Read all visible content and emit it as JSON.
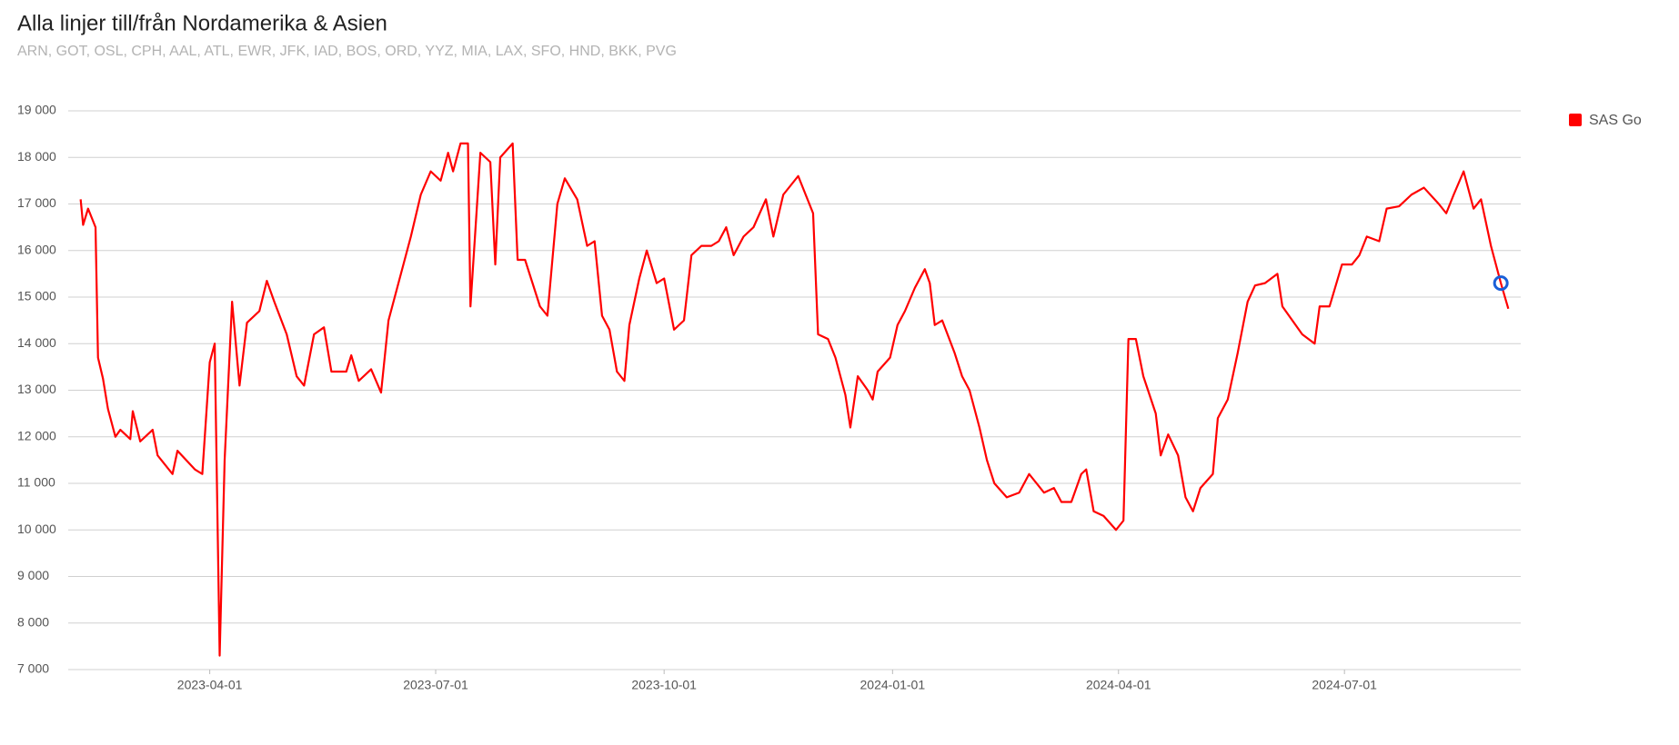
{
  "chart_data": {
    "type": "line",
    "title": "Alla linjer till/från Nordamerika & Asien",
    "subtitle": "ARN, GOT, OSL, CPH, AAL, ATL, EWR, JFK, IAD, BOS, ORD, YYZ, MIA, LAX, SFO, HND, BKK, PVG",
    "x": [
      "2023-02-08",
      "2023-02-09",
      "2023-02-11",
      "2023-02-14",
      "2023-02-15",
      "2023-02-17",
      "2023-02-19",
      "2023-02-22",
      "2023-02-24",
      "2023-02-28",
      "2023-03-01",
      "2023-03-04",
      "2023-03-09",
      "2023-03-11",
      "2023-03-17",
      "2023-03-19",
      "2023-03-26",
      "2023-03-29",
      "2023-04-01",
      "2023-04-03",
      "2023-04-05",
      "2023-04-07",
      "2023-04-10",
      "2023-04-13",
      "2023-04-16",
      "2023-04-21",
      "2023-04-24",
      "2023-04-27",
      "2023-05-02",
      "2023-05-06",
      "2023-05-09",
      "2023-05-13",
      "2023-05-17",
      "2023-05-20",
      "2023-05-26",
      "2023-05-28",
      "2023-05-31",
      "2023-06-05",
      "2023-06-09",
      "2023-06-12",
      "2023-06-16",
      "2023-06-21",
      "2023-06-25",
      "2023-06-29",
      "2023-07-03",
      "2023-07-06",
      "2023-07-08",
      "2023-07-11",
      "2023-07-14",
      "2023-07-15",
      "2023-07-19",
      "2023-07-23",
      "2023-07-25",
      "2023-07-27",
      "2023-08-01",
      "2023-08-03",
      "2023-08-06",
      "2023-08-12",
      "2023-08-15",
      "2023-08-19",
      "2023-08-22",
      "2023-08-27",
      "2023-08-31",
      "2023-09-03",
      "2023-09-06",
      "2023-09-09",
      "2023-09-12",
      "2023-09-15",
      "2023-09-17",
      "2023-09-21",
      "2023-09-24",
      "2023-09-28",
      "2023-10-01",
      "2023-10-05",
      "2023-10-09",
      "2023-10-12",
      "2023-10-16",
      "2023-10-20",
      "2023-10-23",
      "2023-10-26",
      "2023-10-29",
      "2023-11-02",
      "2023-11-06",
      "2023-11-11",
      "2023-11-14",
      "2023-11-18",
      "2023-11-24",
      "2023-11-27",
      "2023-11-30",
      "2023-12-02",
      "2023-12-06",
      "2023-12-09",
      "2023-12-13",
      "2023-12-15",
      "2023-12-18",
      "2023-12-22",
      "2023-12-24",
      "2023-12-26",
      "2023-12-31",
      "2024-01-03",
      "2024-01-06",
      "2024-01-10",
      "2024-01-14",
      "2024-01-16",
      "2024-01-18",
      "2024-01-21",
      "2024-01-26",
      "2024-01-29",
      "2024-02-01",
      "2024-02-05",
      "2024-02-08",
      "2024-02-11",
      "2024-02-16",
      "2024-02-21",
      "2024-02-25",
      "2024-03-02",
      "2024-03-06",
      "2024-03-09",
      "2024-03-13",
      "2024-03-17",
      "2024-03-19",
      "2024-03-22",
      "2024-03-26",
      "2024-03-31",
      "2024-04-03",
      "2024-04-05",
      "2024-04-08",
      "2024-04-11",
      "2024-04-16",
      "2024-04-18",
      "2024-04-21",
      "2024-04-25",
      "2024-04-28",
      "2024-05-01",
      "2024-05-04",
      "2024-05-09",
      "2024-05-11",
      "2024-05-15",
      "2024-05-19",
      "2024-05-23",
      "2024-05-26",
      "2024-05-30",
      "2024-06-04",
      "2024-06-06",
      "2024-06-10",
      "2024-06-14",
      "2024-06-19",
      "2024-06-21",
      "2024-06-25",
      "2024-06-30",
      "2024-07-04",
      "2024-07-07",
      "2024-07-10",
      "2024-07-15",
      "2024-07-18",
      "2024-07-23",
      "2024-07-28",
      "2024-08-02",
      "2024-08-08",
      "2024-08-11",
      "2024-08-14",
      "2024-08-18",
      "2024-08-22",
      "2024-08-25",
      "2024-08-29",
      "2024-09-02",
      "2024-09-05"
    ],
    "series": [
      {
        "name": "SAS Go",
        "color": "#ff0000",
        "values": [
          17100,
          16550,
          16900,
          16500,
          13700,
          13250,
          12600,
          12000,
          12150,
          11950,
          12550,
          11900,
          12150,
          11600,
          11200,
          11700,
          11300,
          11200,
          13600,
          14000,
          7300,
          11500,
          14900,
          13100,
          14450,
          14700,
          15350,
          14900,
          14200,
          13300,
          13100,
          14200,
          14350,
          13400,
          13400,
          13750,
          13200,
          13450,
          12950,
          14500,
          15300,
          16300,
          17200,
          17700,
          17500,
          18100,
          17700,
          18300,
          18300,
          14800,
          18100,
          17900,
          15700,
          18000,
          18300,
          15800,
          15800,
          14800,
          14600,
          17000,
          17550,
          17100,
          16100,
          16200,
          14600,
          14300,
          13400,
          13200,
          14400,
          15400,
          16000,
          15300,
          15400,
          14300,
          14500,
          15900,
          16100,
          16100,
          16200,
          16500,
          15900,
          16300,
          16500,
          17100,
          16300,
          17200,
          17600,
          17200,
          16800,
          14200,
          14100,
          13700,
          12900,
          12200,
          13300,
          13000,
          12800,
          13400,
          13700,
          14400,
          14700,
          15200,
          15600,
          15300,
          14400,
          14500,
          13800,
          13300,
          13000,
          12200,
          11500,
          11000,
          10700,
          10800,
          11200,
          10800,
          10900,
          10600,
          10600,
          11200,
          11300,
          10400,
          10300,
          10000,
          10200,
          14100,
          14100,
          13300,
          12500,
          11600,
          12050,
          11600,
          10700,
          10400,
          10900,
          11200,
          12400,
          12800,
          13800,
          14900,
          15250,
          15300,
          15500,
          14800,
          14500,
          14200,
          14000,
          14800,
          14800,
          15700,
          15700,
          15900,
          16300,
          16200,
          16900,
          16950,
          17200,
          17350,
          17000,
          16800,
          17200,
          17700,
          16900,
          17100,
          16100,
          15300,
          14750
        ]
      }
    ],
    "xlim": [
      "2023-02-03",
      "2024-09-10"
    ],
    "xticks": [
      "2023-04-01",
      "2023-07-01",
      "2023-10-01",
      "2024-01-01",
      "2024-04-01",
      "2024-07-01"
    ],
    "ylim": [
      7000,
      19000
    ],
    "yticks": [
      {
        "value": 7000,
        "label": "7 000"
      },
      {
        "value": 8000,
        "label": "8 000"
      },
      {
        "value": 9000,
        "label": "9 000"
      },
      {
        "value": 10000,
        "label": "10 000"
      },
      {
        "value": 11000,
        "label": "11 000"
      },
      {
        "value": 12000,
        "label": "12 000"
      },
      {
        "value": 13000,
        "label": "13 000"
      },
      {
        "value": 14000,
        "label": "14 000"
      },
      {
        "value": 15000,
        "label": "15 000"
      },
      {
        "value": 16000,
        "label": "16 000"
      },
      {
        "value": 17000,
        "label": "17 000"
      },
      {
        "value": 18000,
        "label": "18 000"
      },
      {
        "value": 19000,
        "label": "19 000"
      }
    ],
    "grid": true,
    "legend": "right"
  }
}
